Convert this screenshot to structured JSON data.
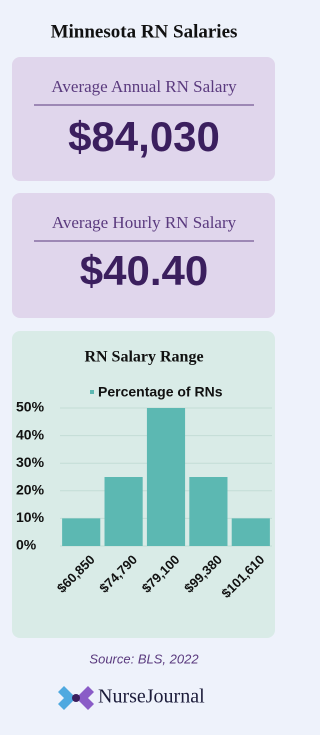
{
  "header": {
    "title": "Minnesota RN Salaries"
  },
  "cards": [
    {
      "label": "Average Annual RN Salary",
      "value": "$84,030"
    },
    {
      "label": "Average Hourly RN Salary",
      "value": "$40.40"
    }
  ],
  "chart_data": {
    "type": "bar",
    "title": "RN Salary Range",
    "categories": [
      "$60,850",
      "$74,790",
      "$79,100",
      "$99,380",
      "$101,610"
    ],
    "series": [
      {
        "name": "Percentage of RNs",
        "color": "#5cb8b2",
        "values": [
          10,
          25,
          50,
          25,
          10
        ]
      }
    ],
    "ylim": [
      0,
      50
    ],
    "yticks": [
      {
        "value": 0,
        "label": "0%"
      },
      {
        "value": 10,
        "label": "10%"
      },
      {
        "value": 20,
        "label": "20%"
      },
      {
        "value": 30,
        "label": "30%"
      },
      {
        "value": 40,
        "label": "40%"
      },
      {
        "value": 50,
        "label": "50%"
      }
    ],
    "grid": true
  },
  "footer": {
    "source": "Source: BLS, 2022",
    "brand": "NurseJournal"
  }
}
